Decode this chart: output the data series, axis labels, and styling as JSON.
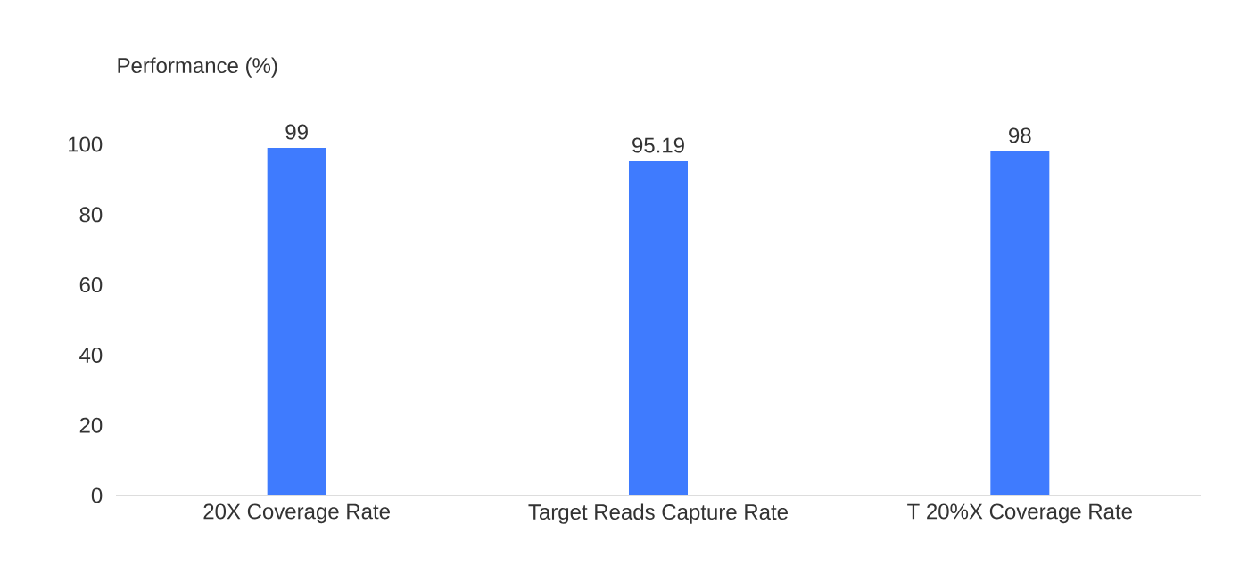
{
  "chart_data": {
    "type": "bar",
    "ylabel": "Performance (%)",
    "categories": [
      "20X Coverage Rate",
      "Target Reads Capture Rate",
      "T 20%X Coverage Rate"
    ],
    "values": [
      99,
      95.19,
      98
    ],
    "color": "#3f7bfe",
    "data_labels": true,
    "ylim": [
      0,
      100
    ],
    "yticks": [
      0,
      20,
      40,
      60,
      80,
      100
    ]
  }
}
